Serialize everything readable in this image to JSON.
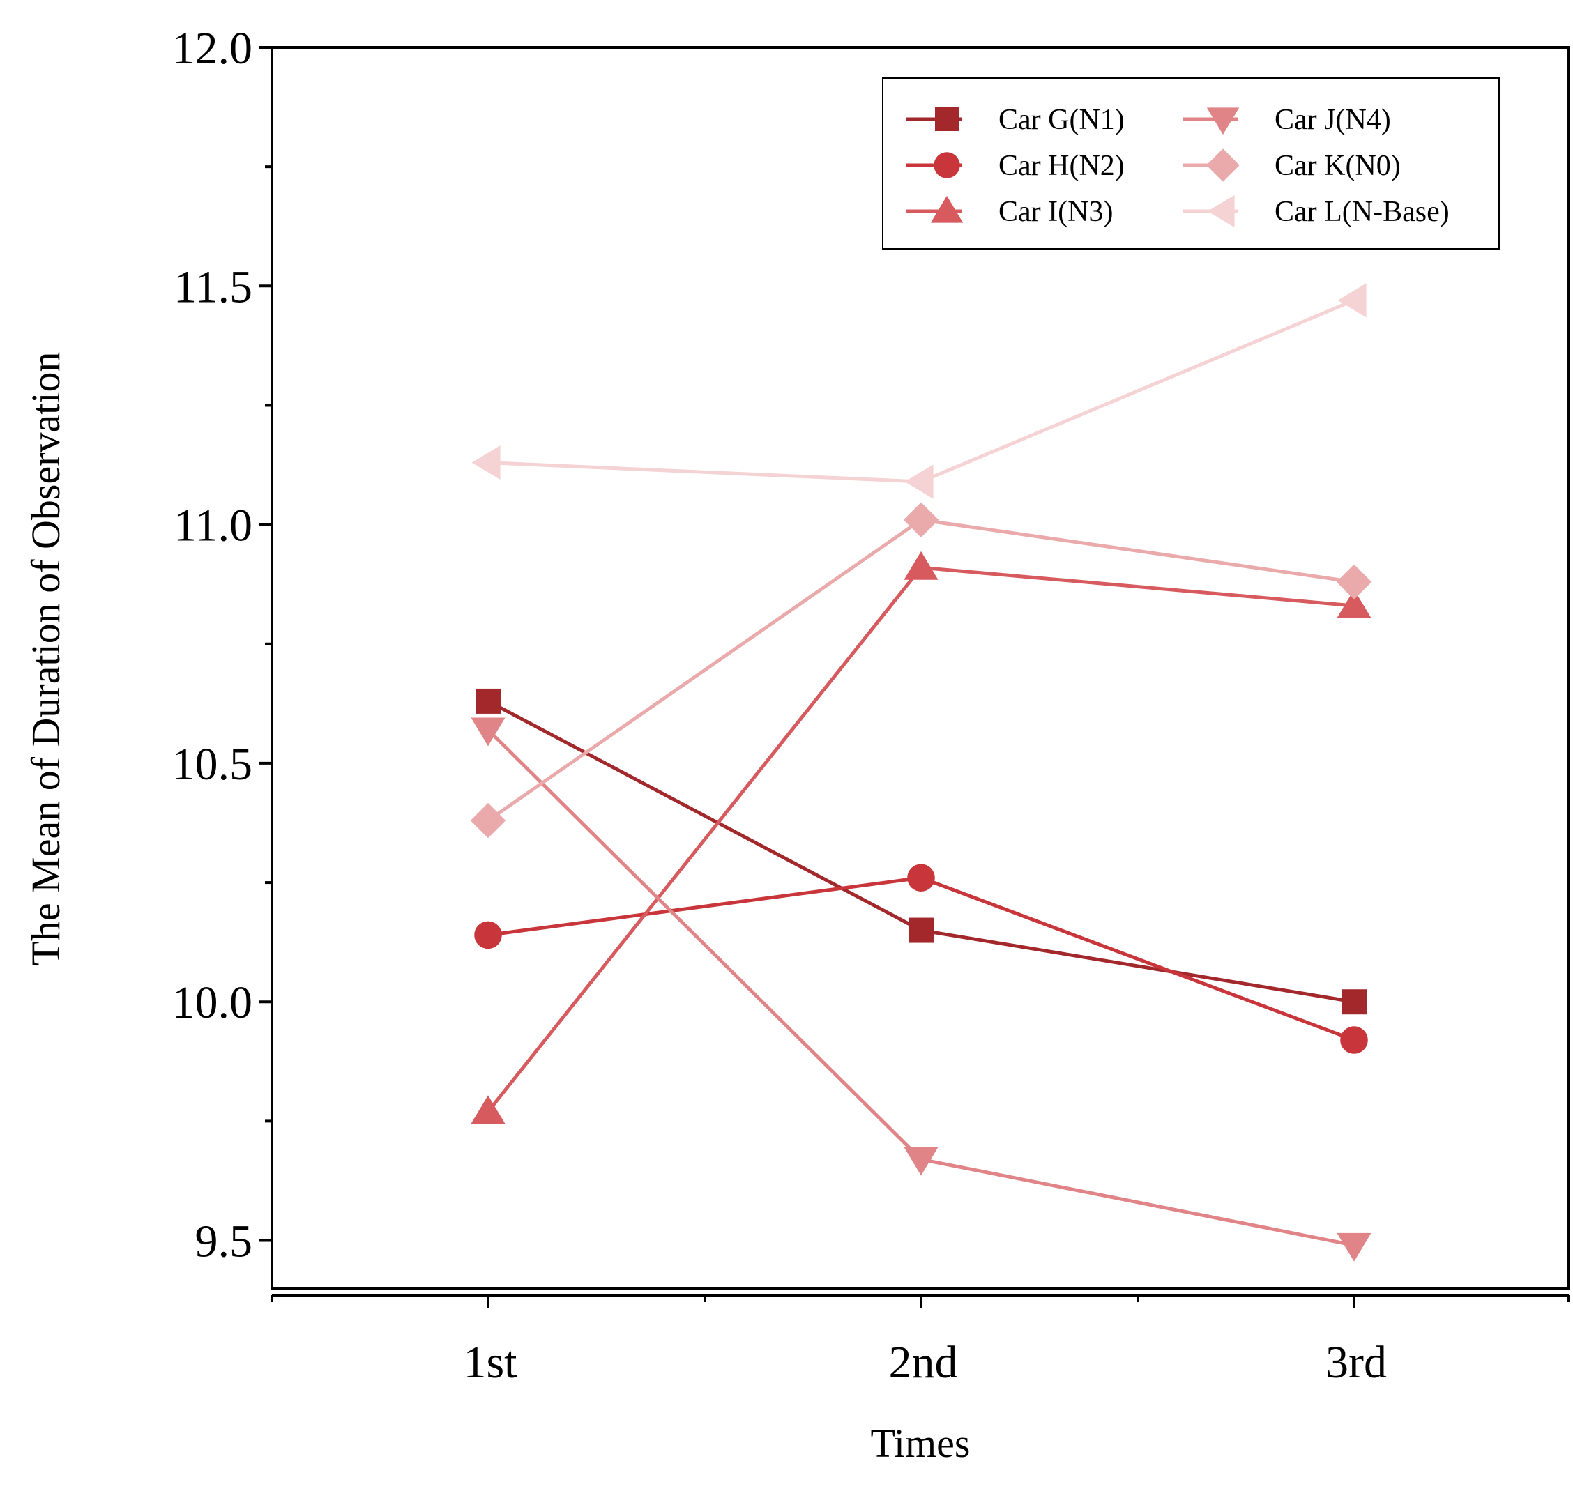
{
  "chart_data": {
    "type": "line",
    "xlabel": "Times",
    "ylabel": "The Mean of Duration of Observation",
    "categories": [
      "1st",
      "2nd",
      "3rd"
    ],
    "ylim": [
      9.4,
      12.0
    ],
    "yticks": [
      9.5,
      10.0,
      10.5,
      11.0,
      11.5,
      12.0
    ],
    "ytick_labels": [
      "9.5",
      "10.0",
      "10.5",
      "11.0",
      "11.5",
      "12.0"
    ],
    "grid": false,
    "legend_position": "top-right",
    "series": [
      {
        "name": "Car G(N1)",
        "marker": "square",
        "color": "#a3282b",
        "values": [
          10.63,
          10.15,
          10.0
        ]
      },
      {
        "name": "Car H(N2)",
        "marker": "circle",
        "color": "#c8353a",
        "values": [
          10.14,
          10.26,
          9.92
        ]
      },
      {
        "name": "Car I(N3)",
        "marker": "triangle-up",
        "color": "#d65a5e",
        "values": [
          9.77,
          10.91,
          10.83
        ]
      },
      {
        "name": "Car J(N4)",
        "marker": "triangle-down",
        "color": "#e08487",
        "values": [
          10.57,
          9.67,
          9.49
        ]
      },
      {
        "name": "Car K(N0)",
        "marker": "diamond",
        "color": "#eaa9aa",
        "values": [
          10.38,
          11.01,
          10.88
        ]
      },
      {
        "name": "Car L(N-Base)",
        "marker": "triangle-left",
        "color": "#f5d2d3",
        "values": [
          11.13,
          11.09,
          11.47
        ]
      }
    ]
  }
}
